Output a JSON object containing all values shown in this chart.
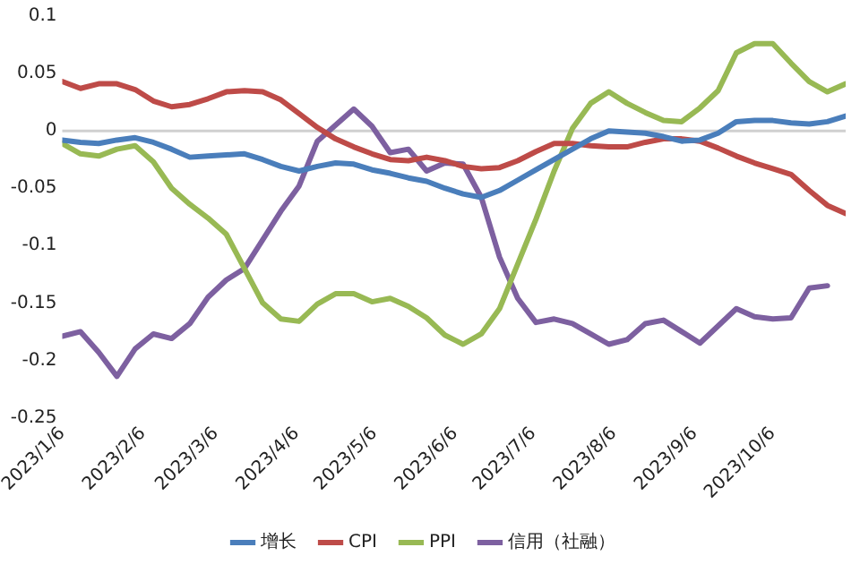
{
  "chart_data": {
    "type": "line",
    "x": [
      "2023-01-06",
      "2023-01-13",
      "2023-01-20",
      "2023-01-27",
      "2023-02-03",
      "2023-02-10",
      "2023-02-17",
      "2023-02-24",
      "2023-03-03",
      "2023-03-10",
      "2023-03-17",
      "2023-03-24",
      "2023-03-31",
      "2023-04-07",
      "2023-04-14",
      "2023-04-21",
      "2023-04-28",
      "2023-05-05",
      "2023-05-12",
      "2023-05-19",
      "2023-05-26",
      "2023-06-02",
      "2023-06-09",
      "2023-06-16",
      "2023-06-23",
      "2023-06-30",
      "2023-07-07",
      "2023-07-14",
      "2023-07-21",
      "2023-07-28",
      "2023-08-04",
      "2023-08-11",
      "2023-08-18",
      "2023-08-25",
      "2023-09-01",
      "2023-09-08",
      "2023-09-15",
      "2023-09-22",
      "2023-09-29",
      "2023-10-06",
      "2023-10-13",
      "2023-10-20",
      "2023-10-27",
      "2023-11-03"
    ],
    "series": [
      {
        "name": "增长",
        "color": "#4a7ebb",
        "values": [
          -0.008,
          -0.01,
          -0.011,
          -0.008,
          -0.006,
          -0.01,
          -0.016,
          -0.023,
          -0.022,
          -0.021,
          -0.02,
          -0.025,
          -0.031,
          -0.035,
          -0.031,
          -0.028,
          -0.029,
          -0.034,
          -0.037,
          -0.041,
          -0.044,
          -0.05,
          -0.055,
          -0.058,
          -0.052,
          -0.043,
          -0.034,
          -0.025,
          -0.016,
          -0.007,
          0,
          -0.001,
          -0.002,
          -0.005,
          -0.009,
          -0.008,
          -0.002,
          0.008,
          0.009,
          0.009,
          0.007,
          0.006,
          0.008,
          0.013
        ]
      },
      {
        "name": "CPI",
        "color": "#be4b48",
        "values": [
          0.043,
          0.037,
          0.041,
          0.041,
          0.036,
          0.026,
          0.021,
          0.023,
          0.028,
          0.034,
          0.035,
          0.034,
          0.027,
          0.015,
          0.003,
          -0.007,
          -0.014,
          -0.02,
          -0.025,
          -0.026,
          -0.023,
          -0.026,
          -0.031,
          -0.033,
          -0.032,
          -0.026,
          -0.018,
          -0.011,
          -0.011,
          -0.013,
          -0.014,
          -0.014,
          -0.01,
          -0.007,
          -0.007,
          -0.009,
          -0.015,
          -0.022,
          -0.028,
          -0.033,
          -0.038,
          -0.052,
          -0.065,
          -0.072
        ]
      },
      {
        "name": "PPI",
        "color": "#98b954",
        "values": [
          -0.011,
          -0.02,
          -0.022,
          -0.016,
          -0.013,
          -0.027,
          -0.05,
          -0.064,
          -0.076,
          -0.09,
          -0.12,
          -0.15,
          -0.164,
          -0.166,
          -0.151,
          -0.142,
          -0.142,
          -0.149,
          -0.146,
          -0.153,
          -0.163,
          -0.178,
          -0.186,
          -0.177,
          -0.155,
          -0.116,
          -0.077,
          -0.035,
          0.002,
          0.024,
          0.034,
          0.024,
          0.016,
          0.009,
          0.008,
          0.02,
          0.035,
          0.068,
          0.076,
          0.076,
          0.059,
          0.043,
          0.034,
          0.041
        ]
      },
      {
        "name": "信用（社融）",
        "color": "#7d60a0",
        "values": [
          -0.179,
          -0.175,
          -0.193,
          -0.214,
          -0.19,
          -0.177,
          -0.181,
          -0.168,
          -0.145,
          -0.13,
          -0.12,
          -0.095,
          -0.07,
          -0.048,
          -0.009,
          0.005,
          0.019,
          0.004,
          -0.019,
          -0.016,
          -0.035,
          -0.028,
          -0.029,
          -0.058,
          -0.11,
          -0.146,
          -0.167,
          -0.164,
          -0.168,
          -0.177,
          -0.186,
          -0.182,
          -0.168,
          -0.165,
          -0.175,
          -0.185,
          -0.17,
          -0.155,
          -0.162,
          -0.164,
          -0.163,
          -0.137,
          -0.135,
          null
        ]
      }
    ],
    "xlim": [
      "2023-01-06",
      "2023-11-03"
    ],
    "xticks": [
      {
        "value": "2023-01-06",
        "label": "2023/1/6"
      },
      {
        "value": "2023-02-06",
        "label": "2023/2/6"
      },
      {
        "value": "2023-03-06",
        "label": "2023/3/6"
      },
      {
        "value": "2023-04-06",
        "label": "2023/4/6"
      },
      {
        "value": "2023-05-06",
        "label": "2023/5/6"
      },
      {
        "value": "2023-06-06",
        "label": "2023/6/6"
      },
      {
        "value": "2023-07-06",
        "label": "2023/7/6"
      },
      {
        "value": "2023-08-06",
        "label": "2023/8/6"
      },
      {
        "value": "2023-09-06",
        "label": "2023/9/6"
      },
      {
        "value": "2023-10-06",
        "label": "2023/10/6"
      }
    ],
    "ylim": [
      -0.25,
      0.1
    ],
    "yticks": [
      -0.25,
      -0.2,
      -0.15,
      -0.1,
      -0.05,
      0,
      0.05,
      0.1
    ],
    "ref_lines": [
      {
        "axis": "y",
        "value": 0,
        "color": "#d0d0d0"
      }
    ],
    "grid": false,
    "legend": "bottom",
    "marker": "none",
    "line_style": "solid"
  }
}
